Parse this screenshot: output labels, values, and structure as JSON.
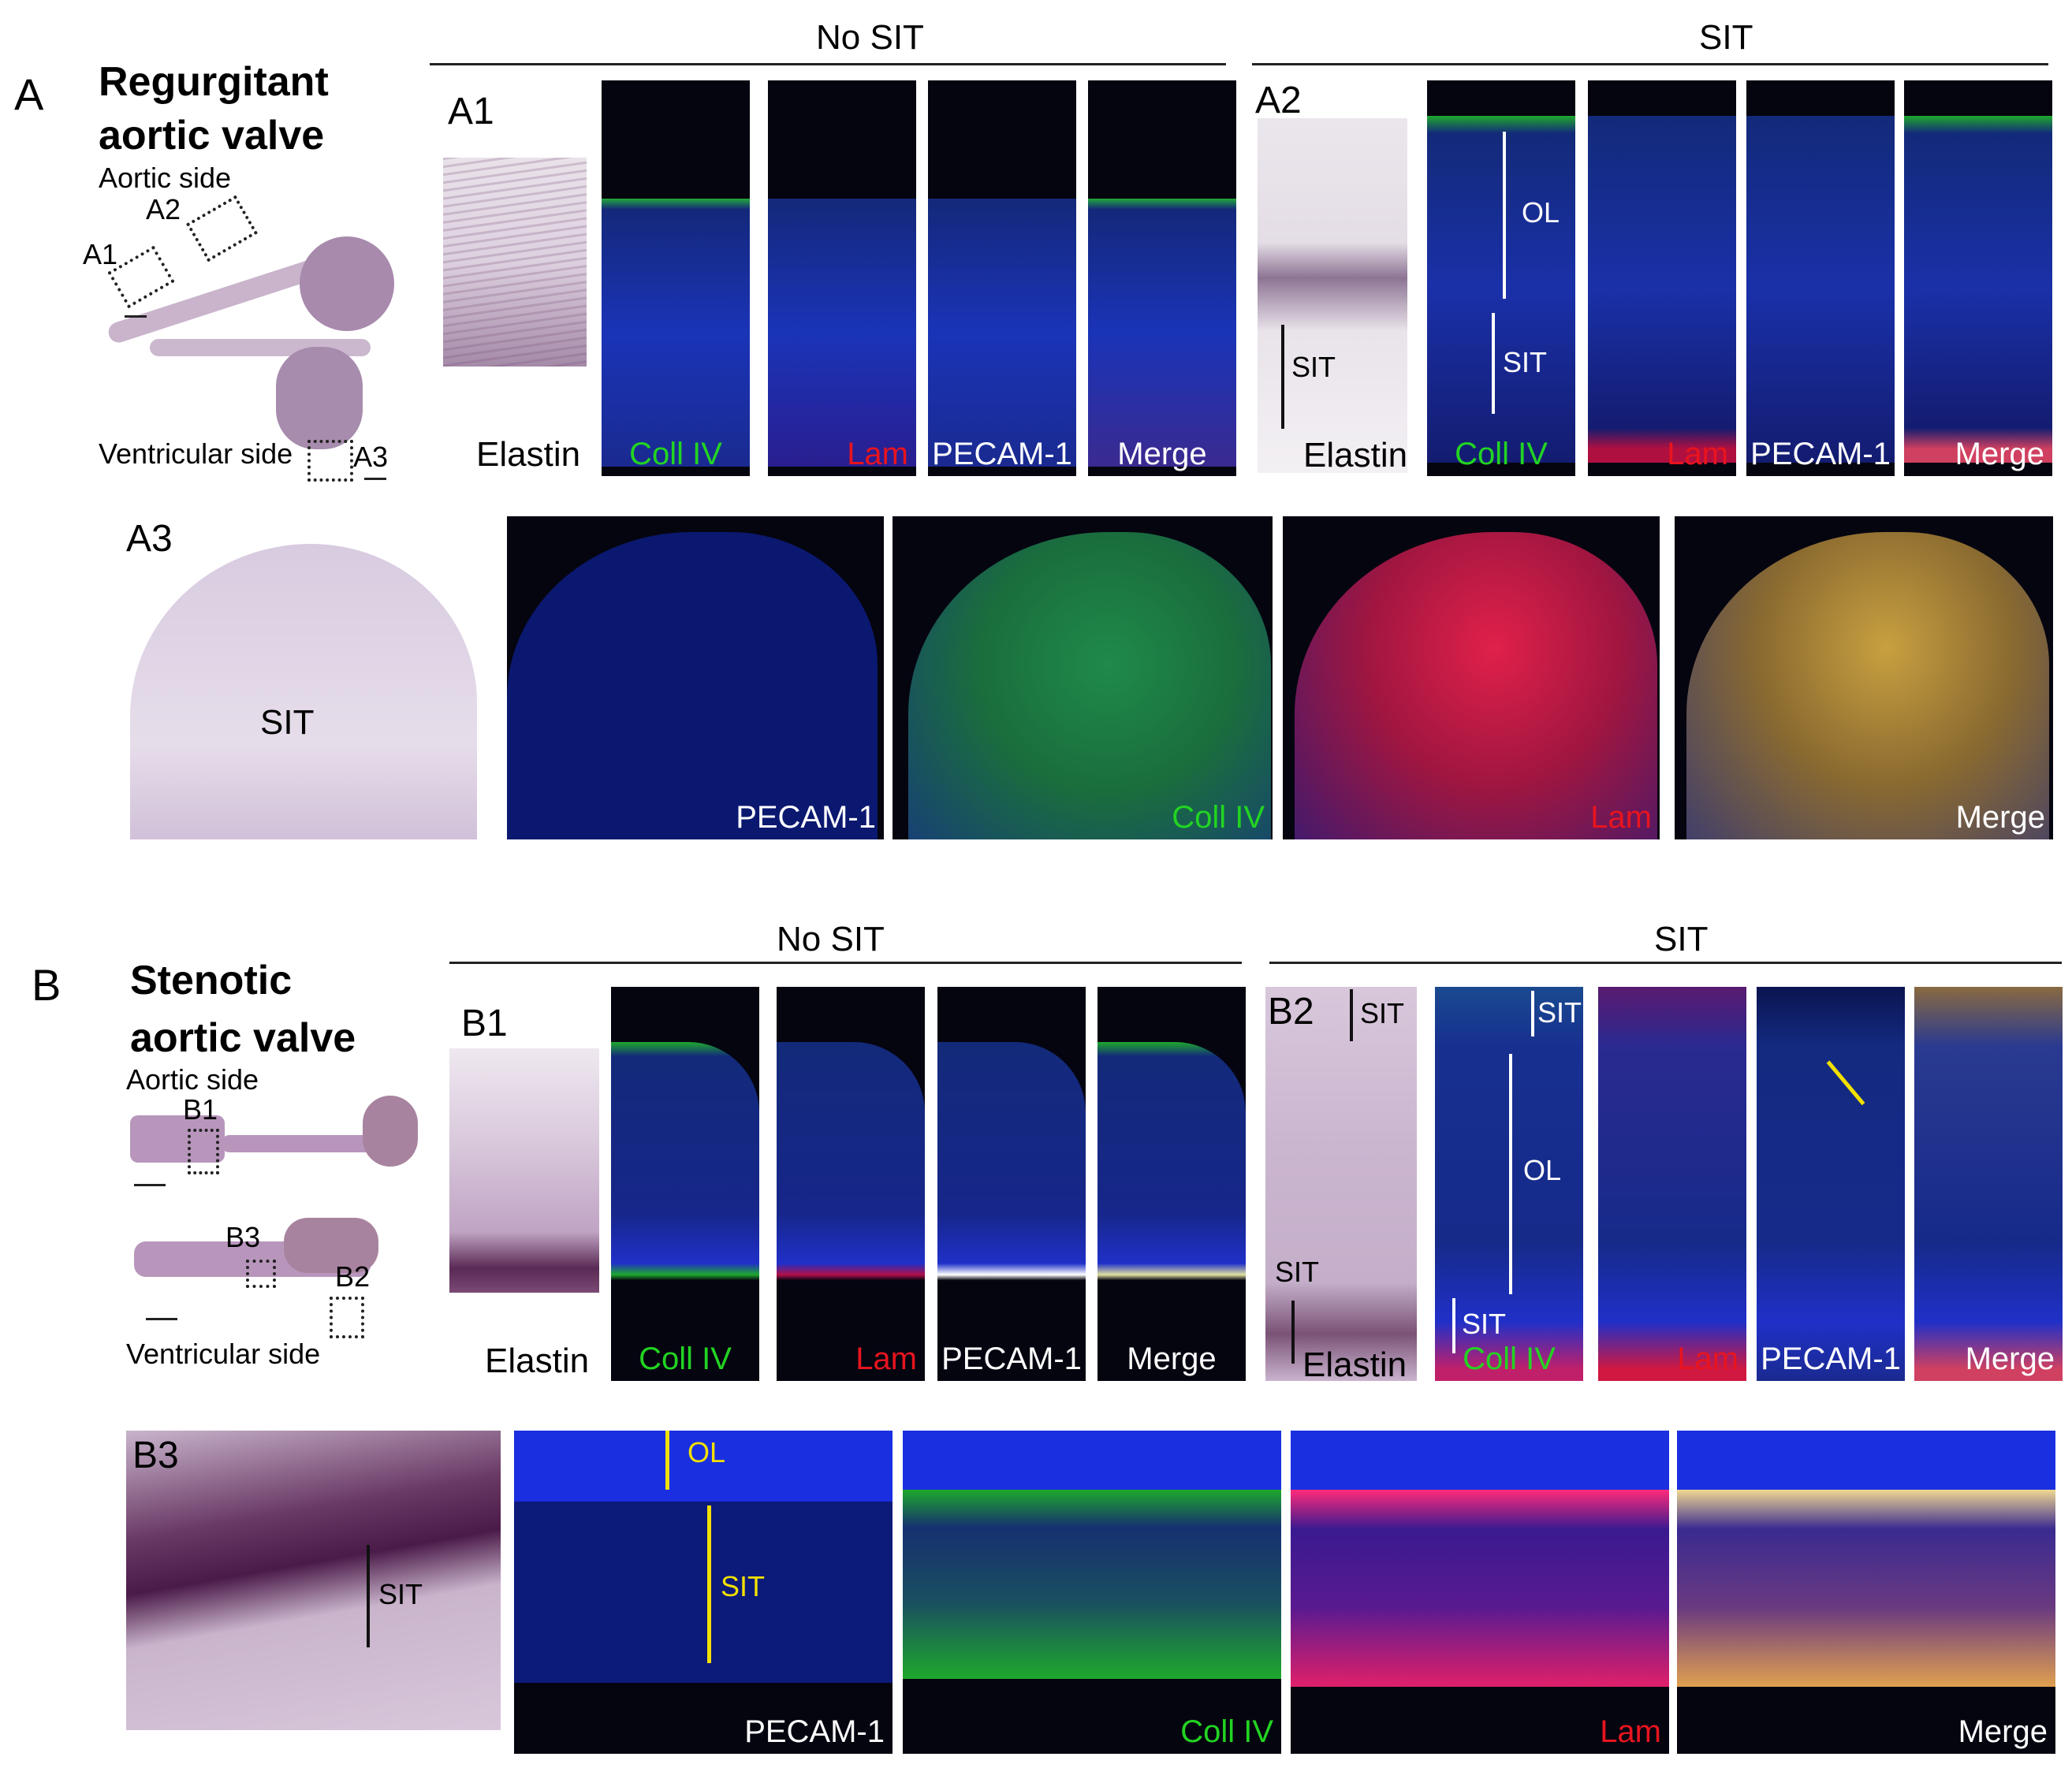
{
  "panelA": {
    "letter": "A",
    "title_line1": "Regurgitant",
    "title_line2": "aortic valve",
    "aortic_side": "Aortic side",
    "ventricular_side": "Ventricular side",
    "box_labels": [
      "A1",
      "A2",
      "A3"
    ],
    "header_no_sit": "No SIT",
    "header_sit": "SIT",
    "a1": {
      "label": "A1",
      "stains": [
        "Elastin",
        "Coll IV",
        "Lam",
        "PECAM-1",
        "Merge"
      ]
    },
    "a2": {
      "label": "A2",
      "stains": [
        "Elastin",
        "Coll IV",
        "Lam",
        "PECAM-1",
        "Merge"
      ],
      "annotations": {
        "ol": "OL",
        "sit_hist": "SIT",
        "sit_fluor": "SIT"
      }
    },
    "a3": {
      "label": "A3",
      "hist_annotation": "SIT",
      "stains": [
        "PECAM-1",
        "Coll IV",
        "Lam",
        "Merge"
      ]
    }
  },
  "panelB": {
    "letter": "B",
    "title_line1": "Stenotic",
    "title_line2": "aortic valve",
    "aortic_side": "Aortic side",
    "ventricular_side": "Ventricular side",
    "box_labels": [
      "B1",
      "B3",
      "B2"
    ],
    "header_no_sit": "No SIT",
    "header_sit": "SIT",
    "b1": {
      "label": "B1",
      "stains": [
        "Elastin",
        "Coll IV",
        "Lam",
        "PECAM-1",
        "Merge"
      ]
    },
    "b2": {
      "label": "B2",
      "stains": [
        "Elastin",
        "Coll IV",
        "Lam",
        "PECAM-1",
        "Merge"
      ],
      "annotations": {
        "sit_top_hist": "SIT",
        "sit_top_fluor": "SIT",
        "ol": "OL",
        "sit_bottom_hist": "SIT",
        "sit_bottom_fluor": "SIT"
      }
    },
    "b3": {
      "label": "B3",
      "hist_annotation": "SIT",
      "ol": "OL",
      "sit": "SIT",
      "stains": [
        "PECAM-1",
        "Coll IV",
        "Lam",
        "Merge"
      ]
    }
  },
  "colors": {
    "coll_iv": "#22d422",
    "lam": "#e8141e",
    "pecam": "#ffffff",
    "merge": "#ffffff",
    "yellow": "#f2e000",
    "dapi": "#1a2fb8"
  }
}
